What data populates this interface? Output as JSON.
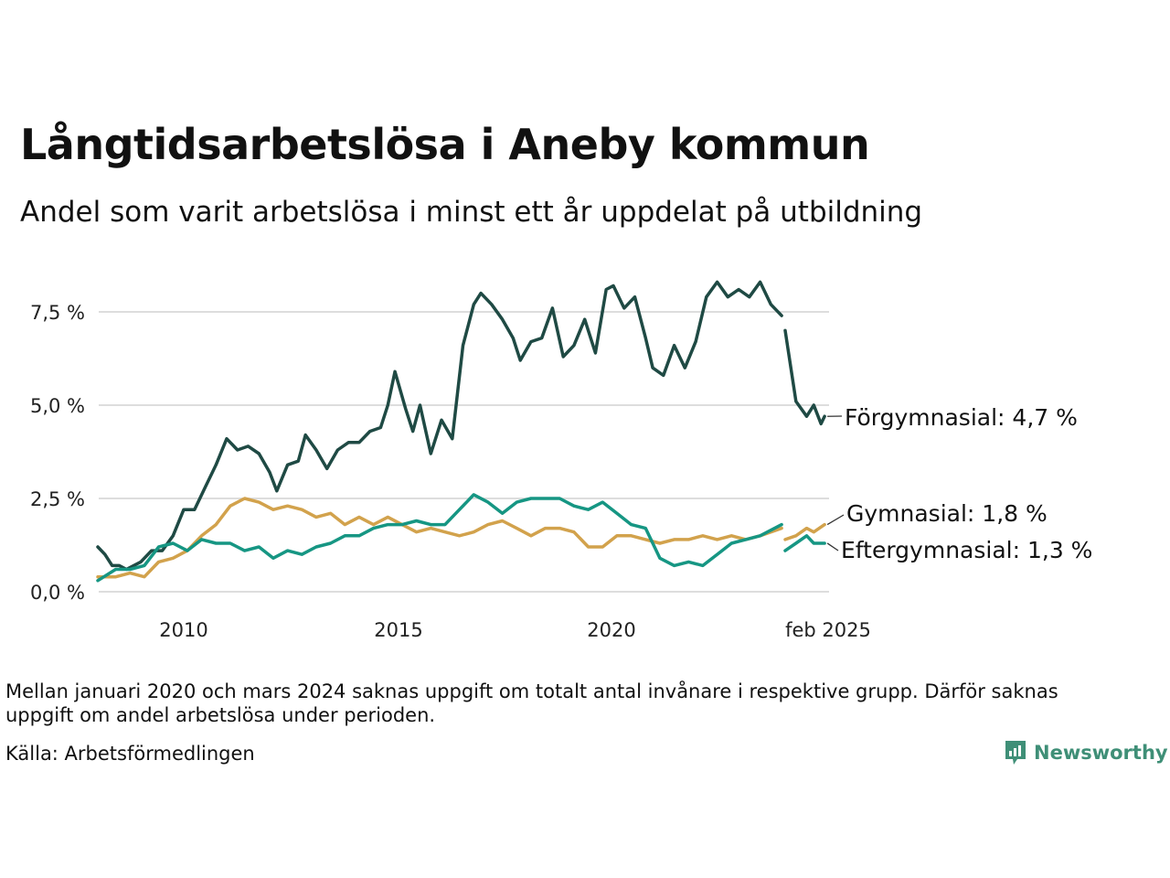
{
  "header": {
    "title": "Långtidsarbetslösa i Aneby kommun",
    "subtitle": "Andel som varit arbetslösa i minst ett år uppdelat på utbildning"
  },
  "footer": {
    "note": "Mellan januari 2020 och mars 2024 saknas uppgift om totalt antal invånare i respektive grupp. Därför saknas uppgift om andel arbetslösa under perioden.",
    "source": "Källa: Arbetsförmedlingen",
    "brand": "Newsworthy"
  },
  "colors": {
    "forgymnasial": "#1f4a44",
    "gymnasial": "#d2a24c",
    "eftergymnasial": "#169683",
    "grid": "#dddddd",
    "brand": "#3f8f77"
  },
  "chart_data": {
    "type": "line",
    "title": "Långtidsarbetslösa i Aneby kommun",
    "subtitle": "Andel som varit arbetslösa i minst ett år uppdelat på utbildning",
    "xlabel": "",
    "ylabel": "",
    "x_ticks": [
      "2010",
      "2015",
      "2020",
      "feb 2025"
    ],
    "y_ticks": [
      "0,0 %",
      "2,5 %",
      "5,0 %",
      "7,5 %"
    ],
    "ylim": [
      0,
      8.6
    ],
    "grid": "horizontal",
    "legend": "direct labels at line ends",
    "series": [
      {
        "name": "Förgymnasial",
        "end_label": "Förgymnasial: 4,7 %",
        "color": "#1f4a44",
        "segments": [
          [
            [
              "2008-01",
              1.2
            ],
            [
              "2008-03",
              1.0
            ],
            [
              "2008-05",
              0.7
            ],
            [
              "2008-07",
              0.7
            ],
            [
              "2008-09",
              0.6
            ],
            [
              "2009-01",
              0.8
            ],
            [
              "2009-04",
              1.1
            ],
            [
              "2009-07",
              1.1
            ],
            [
              "2009-10",
              1.5
            ],
            [
              "2010-01",
              2.2
            ],
            [
              "2010-04",
              2.2
            ],
            [
              "2010-07",
              2.8
            ],
            [
              "2010-10",
              3.4
            ],
            [
              "2011-01",
              4.1
            ],
            [
              "2011-04",
              3.8
            ],
            [
              "2011-07",
              3.9
            ],
            [
              "2011-10",
              3.7
            ],
            [
              "2012-01",
              3.2
            ],
            [
              "2012-03",
              2.7
            ],
            [
              "2012-06",
              3.4
            ],
            [
              "2012-09",
              3.5
            ],
            [
              "2012-11",
              4.2
            ],
            [
              "2013-02",
              3.8
            ],
            [
              "2013-05",
              3.3
            ],
            [
              "2013-08",
              3.8
            ],
            [
              "2013-11",
              4.0
            ],
            [
              "2014-02",
              4.0
            ],
            [
              "2014-05",
              4.3
            ],
            [
              "2014-08",
              4.4
            ],
            [
              "2014-10",
              5.0
            ],
            [
              "2014-12",
              5.9
            ],
            [
              "2015-03",
              4.9
            ],
            [
              "2015-05",
              4.3
            ],
            [
              "2015-07",
              5.0
            ],
            [
              "2015-10",
              3.7
            ],
            [
              "2016-01",
              4.6
            ],
            [
              "2016-04",
              4.1
            ],
            [
              "2016-07",
              6.6
            ],
            [
              "2016-10",
              7.7
            ],
            [
              "2016-12",
              8.0
            ],
            [
              "2017-03",
              7.7
            ],
            [
              "2017-06",
              7.3
            ],
            [
              "2017-09",
              6.8
            ],
            [
              "2017-11",
              6.2
            ],
            [
              "2018-02",
              6.7
            ],
            [
              "2018-05",
              6.8
            ],
            [
              "2018-08",
              7.6
            ],
            [
              "2018-11",
              6.3
            ],
            [
              "2019-02",
              6.6
            ],
            [
              "2019-05",
              7.3
            ],
            [
              "2019-08",
              6.4
            ],
            [
              "2019-11",
              8.1
            ],
            [
              "2020-01",
              8.2
            ],
            [
              "2020-04",
              7.6
            ],
            [
              "2020-07",
              7.9
            ],
            [
              "2020-10",
              6.8
            ],
            [
              "2020-12",
              6.0
            ],
            [
              "2021-03",
              5.8
            ],
            [
              "2021-06",
              6.6
            ],
            [
              "2021-09",
              6.0
            ],
            [
              "2021-12",
              6.7
            ],
            [
              "2022-03",
              7.9
            ],
            [
              "2022-06",
              8.3
            ],
            [
              "2022-09",
              7.9
            ],
            [
              "2022-12",
              8.1
            ],
            [
              "2023-03",
              7.9
            ],
            [
              "2023-06",
              8.3
            ],
            [
              "2023-09",
              7.7
            ],
            [
              "2023-12",
              7.4
            ]
          ],
          [
            [
              "2024-03",
              7.0
            ],
            [
              "2024-06",
              5.1
            ],
            [
              "2024-09",
              4.7
            ],
            [
              "2024-11",
              5.0
            ],
            [
              "2025-01",
              4.5
            ],
            [
              "2025-02",
              4.7
            ]
          ]
        ]
      },
      {
        "name": "Gymnasial",
        "end_label": "Gymnasial: 1,8 %",
        "color": "#d2a24c",
        "segments": [
          [
            [
              "2008-01",
              0.4
            ],
            [
              "2008-06",
              0.4
            ],
            [
              "2008-10",
              0.5
            ],
            [
              "2009-02",
              0.4
            ],
            [
              "2009-06",
              0.8
            ],
            [
              "2009-10",
              0.9
            ],
            [
              "2010-02",
              1.1
            ],
            [
              "2010-06",
              1.5
            ],
            [
              "2010-10",
              1.8
            ],
            [
              "2011-02",
              2.3
            ],
            [
              "2011-06",
              2.5
            ],
            [
              "2011-10",
              2.4
            ],
            [
              "2012-02",
              2.2
            ],
            [
              "2012-06",
              2.3
            ],
            [
              "2012-10",
              2.2
            ],
            [
              "2013-02",
              2.0
            ],
            [
              "2013-06",
              2.1
            ],
            [
              "2013-10",
              1.8
            ],
            [
              "2014-02",
              2.0
            ],
            [
              "2014-06",
              1.8
            ],
            [
              "2014-10",
              2.0
            ],
            [
              "2015-02",
              1.8
            ],
            [
              "2015-06",
              1.6
            ],
            [
              "2015-10",
              1.7
            ],
            [
              "2016-02",
              1.6
            ],
            [
              "2016-06",
              1.5
            ],
            [
              "2016-10",
              1.6
            ],
            [
              "2017-02",
              1.8
            ],
            [
              "2017-06",
              1.9
            ],
            [
              "2017-10",
              1.7
            ],
            [
              "2018-02",
              1.5
            ],
            [
              "2018-06",
              1.7
            ],
            [
              "2018-10",
              1.7
            ],
            [
              "2019-02",
              1.6
            ],
            [
              "2019-06",
              1.2
            ],
            [
              "2019-10",
              1.2
            ],
            [
              "2020-02",
              1.5
            ],
            [
              "2020-06",
              1.5
            ],
            [
              "2020-10",
              1.4
            ],
            [
              "2021-02",
              1.3
            ],
            [
              "2021-06",
              1.4
            ],
            [
              "2021-10",
              1.4
            ],
            [
              "2022-02",
              1.5
            ],
            [
              "2022-06",
              1.4
            ],
            [
              "2022-10",
              1.5
            ],
            [
              "2023-02",
              1.4
            ],
            [
              "2023-06",
              1.5
            ],
            [
              "2023-12",
              1.7
            ]
          ],
          [
            [
              "2024-03",
              1.4
            ],
            [
              "2024-06",
              1.5
            ],
            [
              "2024-09",
              1.7
            ],
            [
              "2024-11",
              1.6
            ],
            [
              "2025-02",
              1.8
            ]
          ]
        ]
      },
      {
        "name": "Eftergymnasial",
        "end_label": "Eftergymnasial: 1,3 %",
        "color": "#169683",
        "segments": [
          [
            [
              "2008-01",
              0.3
            ],
            [
              "2008-06",
              0.6
            ],
            [
              "2008-10",
              0.6
            ],
            [
              "2009-02",
              0.7
            ],
            [
              "2009-06",
              1.2
            ],
            [
              "2009-10",
              1.3
            ],
            [
              "2010-02",
              1.1
            ],
            [
              "2010-06",
              1.4
            ],
            [
              "2010-10",
              1.3
            ],
            [
              "2011-02",
              1.3
            ],
            [
              "2011-06",
              1.1
            ],
            [
              "2011-10",
              1.2
            ],
            [
              "2012-02",
              0.9
            ],
            [
              "2012-06",
              1.1
            ],
            [
              "2012-10",
              1.0
            ],
            [
              "2013-02",
              1.2
            ],
            [
              "2013-06",
              1.3
            ],
            [
              "2013-10",
              1.5
            ],
            [
              "2014-02",
              1.5
            ],
            [
              "2014-06",
              1.7
            ],
            [
              "2014-10",
              1.8
            ],
            [
              "2015-02",
              1.8
            ],
            [
              "2015-06",
              1.9
            ],
            [
              "2015-10",
              1.8
            ],
            [
              "2016-02",
              1.8
            ],
            [
              "2016-06",
              2.2
            ],
            [
              "2016-10",
              2.6
            ],
            [
              "2017-02",
              2.4
            ],
            [
              "2017-06",
              2.1
            ],
            [
              "2017-10",
              2.4
            ],
            [
              "2018-02",
              2.5
            ],
            [
              "2018-06",
              2.5
            ],
            [
              "2018-10",
              2.5
            ],
            [
              "2019-02",
              2.3
            ],
            [
              "2019-06",
              2.2
            ],
            [
              "2019-10",
              2.4
            ],
            [
              "2020-02",
              2.1
            ],
            [
              "2020-06",
              1.8
            ],
            [
              "2020-10",
              1.7
            ],
            [
              "2021-02",
              0.9
            ],
            [
              "2021-06",
              0.7
            ],
            [
              "2021-10",
              0.8
            ],
            [
              "2022-02",
              0.7
            ],
            [
              "2022-06",
              1.0
            ],
            [
              "2022-10",
              1.3
            ],
            [
              "2023-02",
              1.4
            ],
            [
              "2023-06",
              1.5
            ],
            [
              "2023-12",
              1.8
            ]
          ],
          [
            [
              "2024-03",
              1.1
            ],
            [
              "2024-06",
              1.3
            ],
            [
              "2024-09",
              1.5
            ],
            [
              "2024-11",
              1.3
            ],
            [
              "2025-02",
              1.3
            ]
          ]
        ]
      }
    ]
  }
}
